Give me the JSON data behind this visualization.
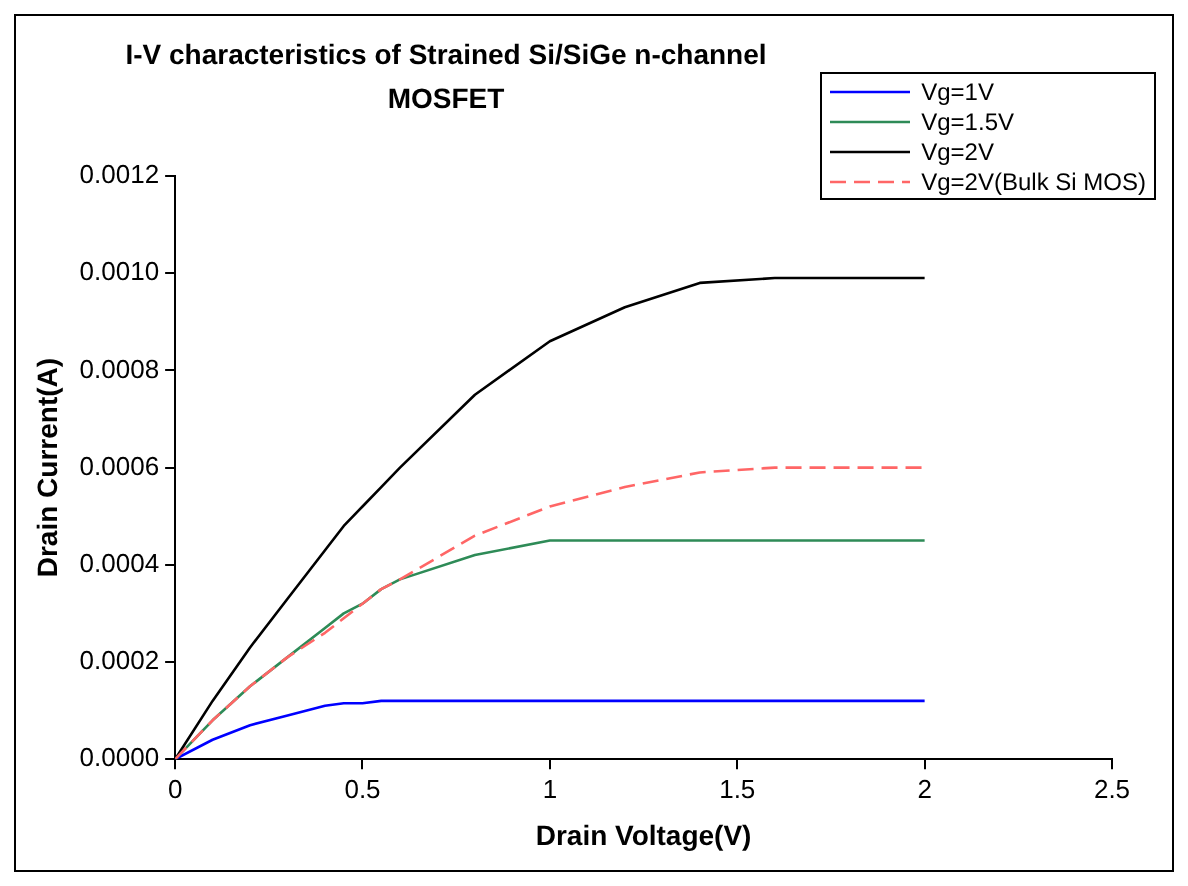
{
  "chart_data": {
    "type": "line",
    "title": "I-V characteristics of Strained Si/SiGe n-channel MOSFET",
    "xlabel": "Drain Voltage(V)",
    "ylabel": "Drain Current(A)",
    "xlim": [
      0,
      2.5
    ],
    "xticks": [
      0,
      0.5,
      1,
      1.5,
      2,
      2.5
    ],
    "ylim": [
      0,
      0.0012
    ],
    "yticks": [
      {
        "value": 0,
        "label": "0.0000"
      },
      {
        "value": 0.0002,
        "label": "0.0002"
      },
      {
        "value": 0.0004,
        "label": "0.0004"
      },
      {
        "value": 0.0006,
        "label": "0.0006"
      },
      {
        "value": 0.0008,
        "label": "0.0008"
      },
      {
        "value": 0.001,
        "label": "0.0010"
      },
      {
        "value": 0.0012,
        "label": "0.0012"
      }
    ],
    "grid": false,
    "legend": "top right",
    "marker": "none",
    "x": [
      0,
      0.1,
      0.2,
      0.3,
      0.4,
      0.45,
      0.5,
      0.55,
      0.6,
      0.8,
      1,
      1.2,
      1.4,
      1.6,
      1.8,
      2
    ],
    "series": [
      {
        "name": "Vg=1V",
        "color": "#0000ff",
        "values": [
          0,
          4e-05,
          7e-05,
          9e-05,
          0.00011,
          0.000115,
          0.000115,
          0.00012,
          0.00012,
          0.00012,
          0.00012,
          0.00012,
          0.00012,
          0.00012,
          0.00012,
          0.00012
        ]
      },
      {
        "name": "Vg=1.5V",
        "color": "#2e8b57",
        "values": [
          0,
          8e-05,
          0.00015,
          0.00021,
          0.00027,
          0.0003,
          0.00032,
          0.00035,
          0.00037,
          0.00042,
          0.00045,
          0.00045,
          0.00045,
          0.00045,
          0.00045,
          0.00045
        ]
      },
      {
        "name": "Vg=2V",
        "color": "#000000",
        "values": [
          0,
          0.00012,
          0.00023,
          0.00033,
          0.00043,
          0.00048,
          0.00052,
          0.00056,
          0.0006,
          0.00075,
          0.00086,
          0.00093,
          0.00098,
          0.00099,
          0.00099,
          0.00099
        ]
      },
      {
        "name": "Vg=2V(Bulk Si MOS)",
        "color": "#ff6666",
        "line_style": "dashed",
        "values": [
          0,
          8e-05,
          0.00015,
          0.00021,
          0.00026,
          0.00029,
          0.00032,
          0.00035,
          0.00037,
          0.00046,
          0.00052,
          0.00056,
          0.00059,
          0.0006,
          0.0006,
          0.0006
        ]
      }
    ]
  }
}
